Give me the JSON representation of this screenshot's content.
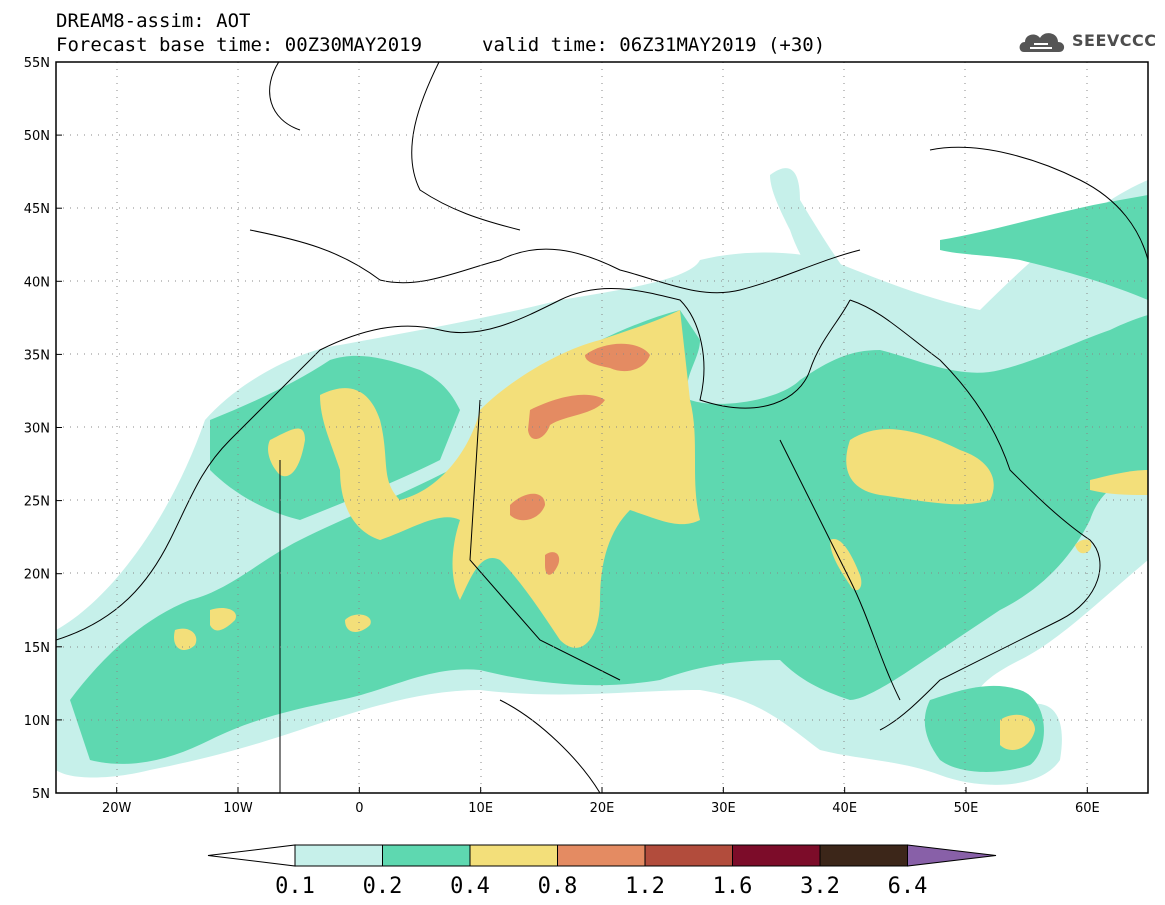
{
  "header": {
    "title": "DREAM8-assim: AOT",
    "base_time": "Forecast base time: 00Z30MAY2019",
    "valid_time": "valid time: 06Z31MAY2019 (+30)"
  },
  "logo": {
    "text": "SEEVCCC",
    "icon": "cloud-icon"
  },
  "map": {
    "lon_range": [
      -25,
      65
    ],
    "lat_range": [
      5,
      55
    ],
    "lon_ticks": [
      "20W",
      "10W",
      "0",
      "10E",
      "20E",
      "30E",
      "40E",
      "50E",
      "60E"
    ],
    "lat_ticks": [
      "55N",
      "50N",
      "45N",
      "40N",
      "35N",
      "30N",
      "25N",
      "20N",
      "15N",
      "10N",
      "5N"
    ],
    "gridlines": "dotted"
  },
  "colorbar": {
    "labels": [
      "0.1",
      "0.2",
      "0.4",
      "0.8",
      "1.2",
      "1.6",
      "3.2",
      "6.4"
    ],
    "colors": [
      "#ffffff",
      "#c6f0ea",
      "#5ed8b0",
      "#f3df7a",
      "#e48b62",
      "#b24c3c",
      "#7c0c29",
      "#3c2619",
      "#8860a8"
    ]
  }
}
